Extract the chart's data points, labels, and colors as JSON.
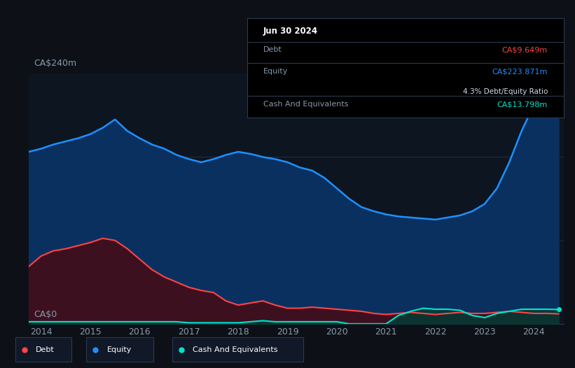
{
  "bg_color": "#0d1117",
  "plot_bg_color": "#0d1520",
  "ylabel_top": "CA$240m",
  "ylabel_bottom": "CA$0",
  "x_ticks": [
    "2014",
    "2015",
    "2016",
    "2017",
    "2018",
    "2019",
    "2020",
    "2021",
    "2022",
    "2023",
    "2024"
  ],
  "equity_color": "#1e90ff",
  "equity_fill": "#0a3060",
  "debt_color": "#ff4444",
  "debt_fill": "#3d1020",
  "cash_color": "#00e5cc",
  "cash_fill": "#003d35",
  "grid_color": "#1e3050",
  "tooltip_bg": "#000000",
  "tooltip_border": "#2a3a50",
  "tooltip_date": "Jun 30 2024",
  "tooltip_debt_label": "Debt",
  "tooltip_debt_value": "CA$9.649m",
  "tooltip_equity_label": "Equity",
  "tooltip_equity_value": "CA$223.871m",
  "tooltip_ratio_text": "4.3% Debt/Equity Ratio",
  "tooltip_cash_label": "Cash And Equivalents",
  "tooltip_cash_value": "CA$13.798m",
  "years": [
    2013.75,
    2014.0,
    2014.25,
    2014.5,
    2014.75,
    2015.0,
    2015.25,
    2015.5,
    2015.75,
    2016.0,
    2016.25,
    2016.5,
    2016.75,
    2017.0,
    2017.25,
    2017.5,
    2017.75,
    2018.0,
    2018.25,
    2018.5,
    2018.75,
    2019.0,
    2019.25,
    2019.5,
    2019.75,
    2020.0,
    2020.25,
    2020.5,
    2020.75,
    2021.0,
    2021.25,
    2021.5,
    2021.75,
    2022.0,
    2022.25,
    2022.5,
    2022.75,
    2023.0,
    2023.25,
    2023.5,
    2023.75,
    2024.0,
    2024.25,
    2024.5
  ],
  "equity": [
    165,
    168,
    172,
    175,
    178,
    182,
    188,
    196,
    185,
    178,
    172,
    168,
    162,
    158,
    155,
    158,
    162,
    165,
    163,
    160,
    158,
    155,
    150,
    147,
    140,
    130,
    120,
    112,
    108,
    105,
    103,
    102,
    101,
    100,
    102,
    104,
    108,
    115,
    130,
    155,
    185,
    210,
    224,
    224
  ],
  "debt": [
    55,
    65,
    70,
    72,
    75,
    78,
    82,
    80,
    72,
    62,
    52,
    45,
    40,
    35,
    32,
    30,
    22,
    18,
    20,
    22,
    18,
    15,
    15,
    16,
    15,
    14,
    13,
    12,
    10,
    9,
    10,
    11,
    10,
    9,
    10,
    11,
    10,
    10,
    11,
    12,
    11,
    10,
    10,
    9.6
  ],
  "cash": [
    2,
    2,
    2,
    2,
    2,
    2,
    2,
    2,
    2,
    2,
    2,
    2,
    2,
    1,
    1,
    1,
    1,
    1,
    2,
    3,
    2,
    2,
    2,
    2,
    2,
    2,
    0,
    0,
    0,
    0,
    8,
    12,
    15,
    14,
    14,
    13,
    8,
    6,
    10,
    12,
    14,
    14,
    14,
    13.8
  ]
}
